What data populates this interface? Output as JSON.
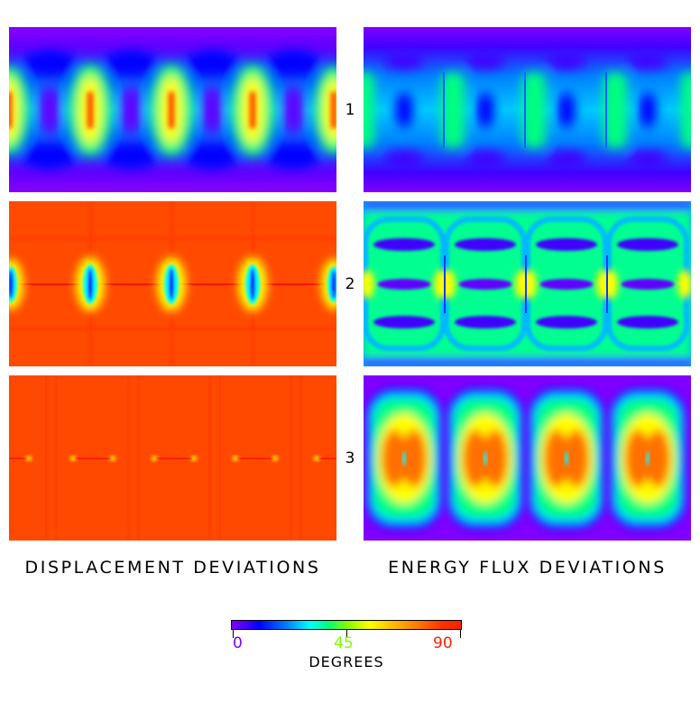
{
  "rows": [
    "1",
    "2",
    "3"
  ],
  "columns": {
    "left_title": "DISPLACEMENT DEVIATIONS",
    "right_title": "ENERGY FLUX DEVIATIONS"
  },
  "colorbar": {
    "min_label": "0",
    "mid_label": "45",
    "max_label": "90",
    "title": "DEGREES",
    "min_color": "#8000ff",
    "mid_color": "#80ff00",
    "max_color": "#ff2000"
  },
  "palette": {
    "violet": "#8000ff",
    "blue": "#0000ff",
    "cyan": "#00ffff",
    "green": "#00ff80",
    "yellow": "#ffff00",
    "orange": "#ff8000",
    "red": "#ff3000"
  }
}
